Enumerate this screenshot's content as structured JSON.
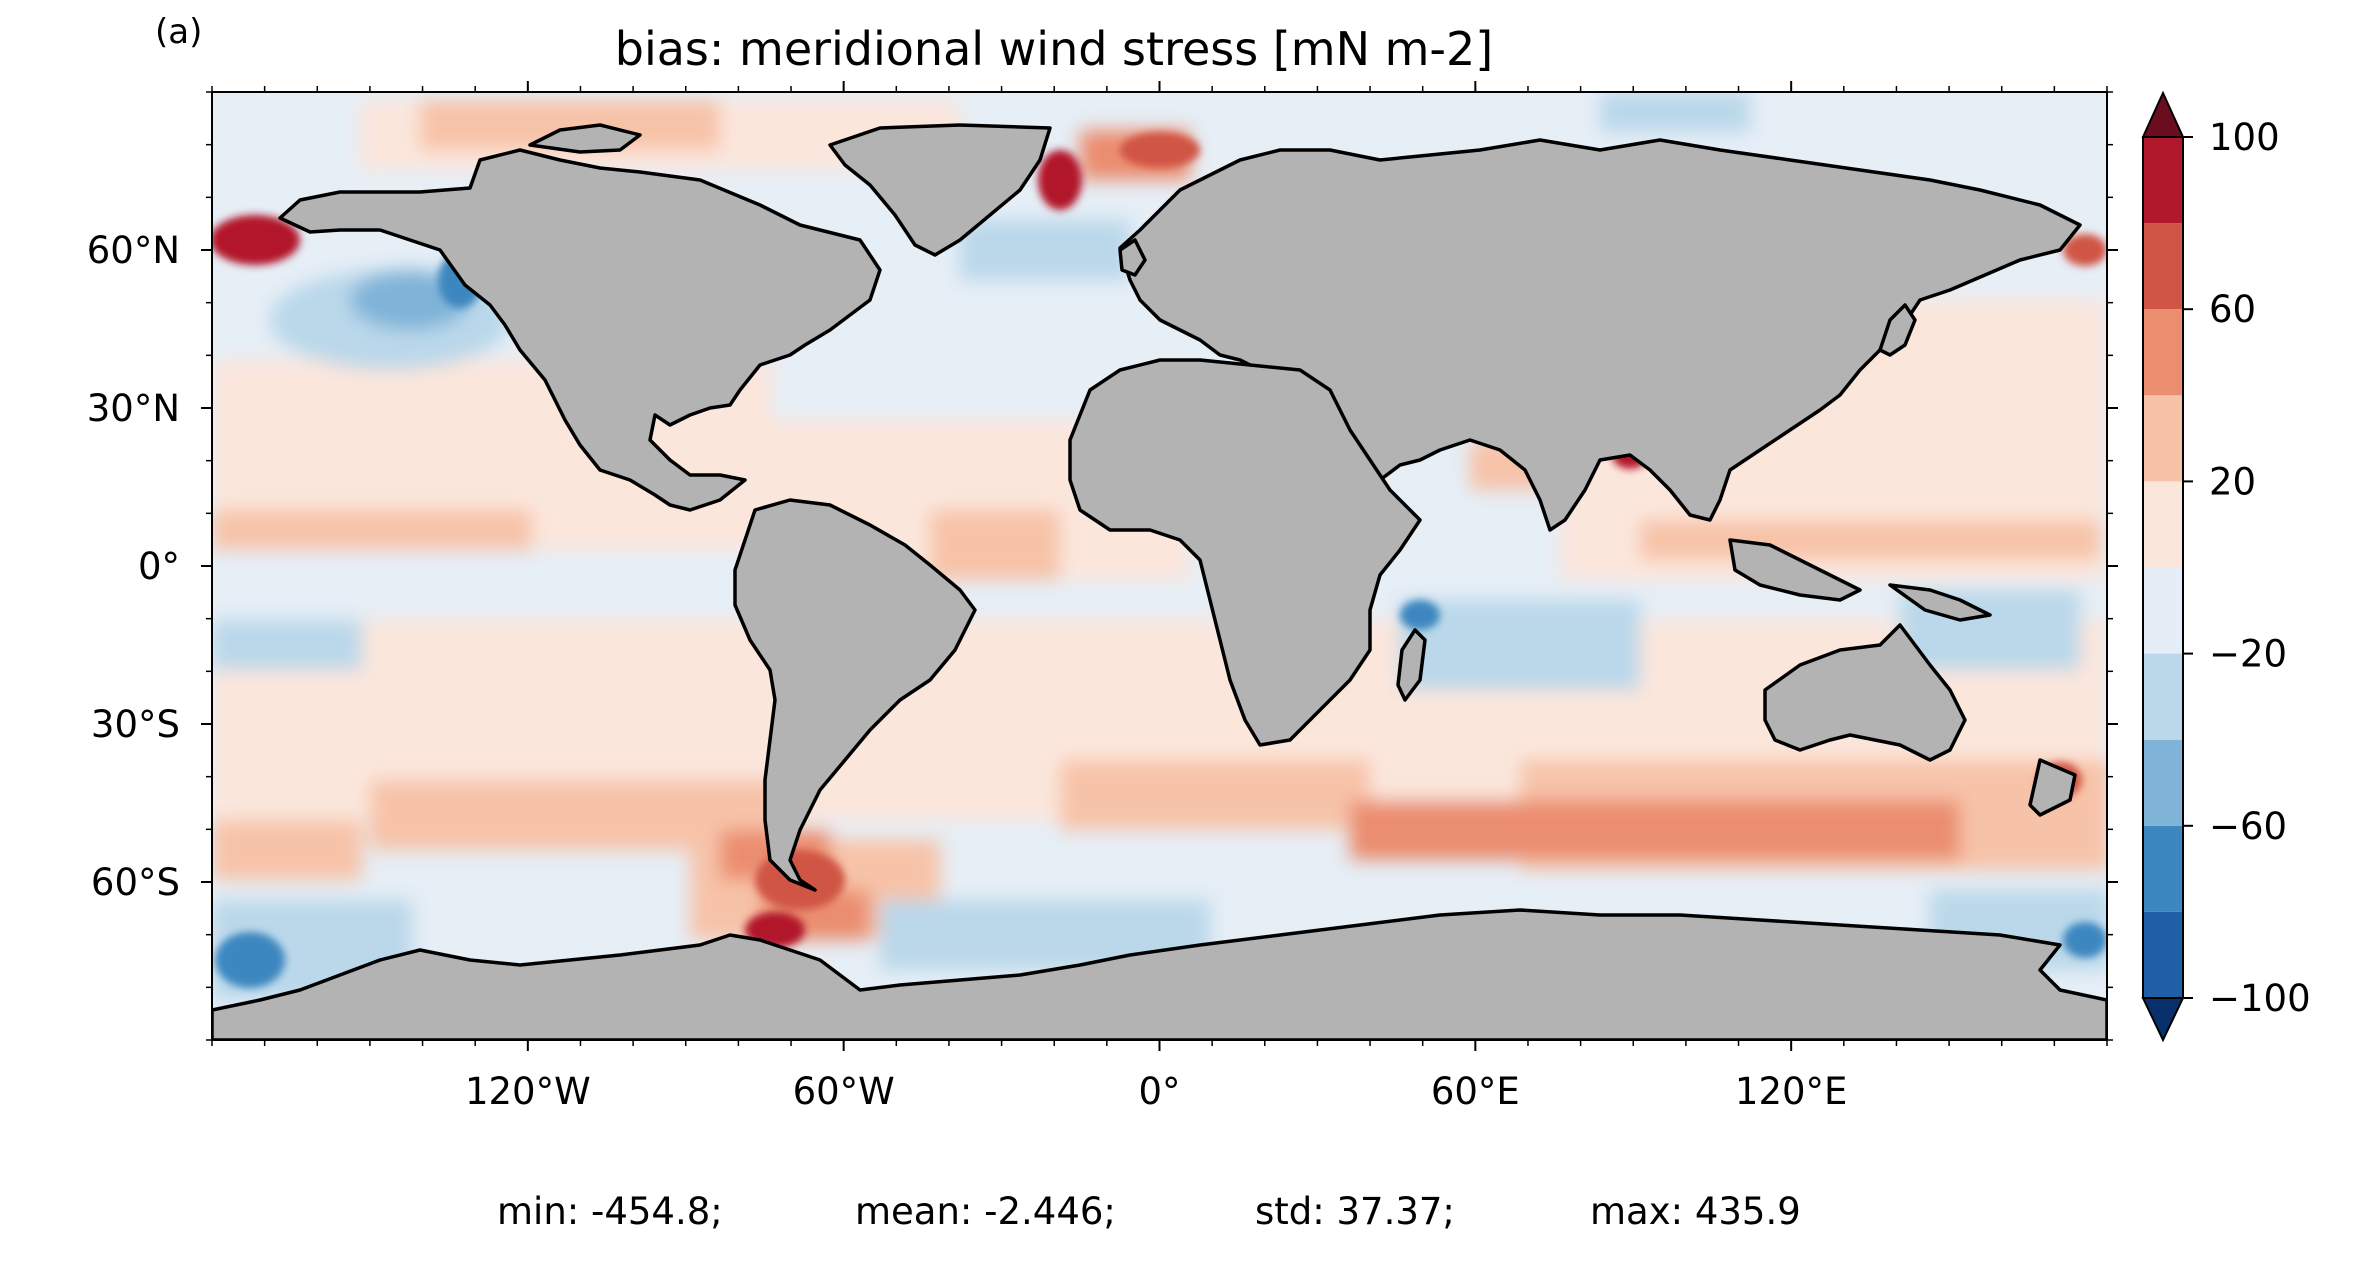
{
  "panel_label": "(a)",
  "title": "bias: meridional wind stress [mN m-2]",
  "axes": {
    "lon_range": [
      -180,
      180
    ],
    "lat_range": [
      -90,
      90
    ],
    "x_ticks": [
      -120,
      -60,
      0,
      60,
      120
    ],
    "x_tick_labels": [
      "120°W",
      "60°W",
      "0°",
      "60°E",
      "120°E"
    ],
    "y_ticks": [
      60,
      30,
      0,
      -30,
      -60
    ],
    "y_tick_labels": [
      "60°N",
      "30°N",
      "0°",
      "30°S",
      "60°S"
    ]
  },
  "colorbar": {
    "levels": [
      -100,
      -80,
      -60,
      -40,
      -20,
      0,
      20,
      40,
      60,
      80,
      100
    ],
    "tick_values": [
      100,
      60,
      20,
      -20,
      -60,
      -100
    ],
    "tick_labels": [
      "100",
      "60",
      "20",
      "−20",
      "−60",
      "−100"
    ],
    "colors": [
      "#08306b",
      "#1f5fa6",
      "#3d87c0",
      "#7fb3d8",
      "#bad8ea",
      "#e5eef6",
      "#fbe6dc",
      "#f7c3a8",
      "#eb8d6f",
      "#d05545",
      "#b2182b",
      "#6a0d1f"
    ],
    "extend": "both"
  },
  "land_color": "#b3b3b3",
  "stats": {
    "min": "min: -454.8;",
    "mean": "mean: -2.446;",
    "std": "std: 37.37;",
    "max": "max: 435.9"
  }
}
